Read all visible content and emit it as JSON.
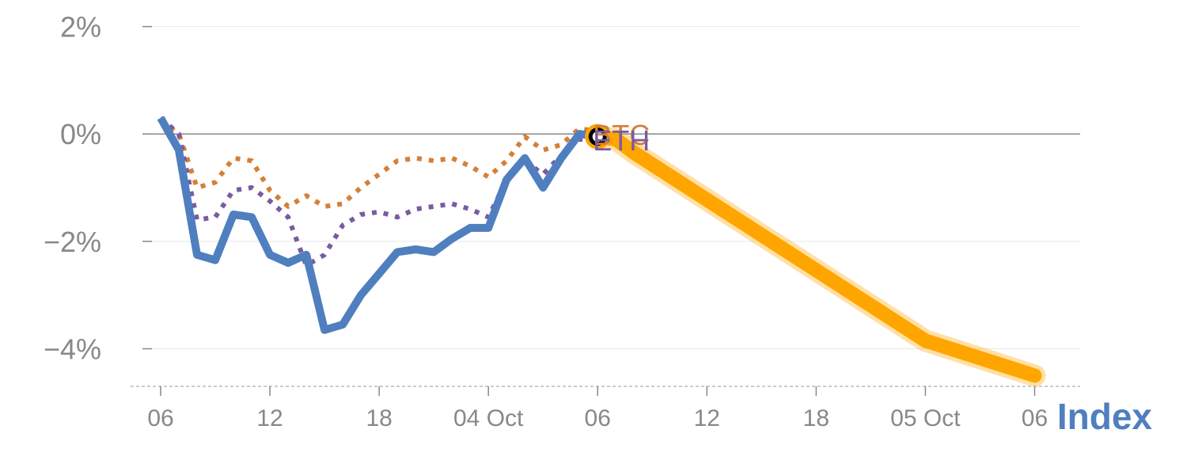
{
  "chart_data": {
    "type": "line",
    "y_ticks": [
      {
        "value": 2,
        "label": "2%"
      },
      {
        "value": 0,
        "label": "0%"
      },
      {
        "value": -2,
        "label": "−2%"
      },
      {
        "value": -4,
        "label": "−4%"
      }
    ],
    "ylim": [
      -4.7,
      2.2
    ],
    "x_ticks": [
      {
        "value": 0,
        "label": "06"
      },
      {
        "value": 6,
        "label": "12"
      },
      {
        "value": 12,
        "label": "18"
      },
      {
        "value": 18,
        "label": "04 Oct"
      },
      {
        "value": 24,
        "label": "06"
      },
      {
        "value": 30,
        "label": "12"
      },
      {
        "value": 36,
        "label": "18"
      },
      {
        "value": 42,
        "label": "05 Oct"
      },
      {
        "value": 48,
        "label": "06"
      }
    ],
    "xlim": [
      -1,
      50.5
    ],
    "grid": true,
    "series": [
      {
        "name": "BTC",
        "style": "dotted",
        "color": "#d4803a",
        "x": [
          0,
          1,
          2,
          3,
          4,
          5,
          6,
          7,
          8,
          9,
          10,
          11,
          12,
          13,
          14,
          15,
          16,
          17,
          18,
          19,
          20,
          21,
          22,
          23,
          24
        ],
        "values": [
          0.25,
          0.0,
          -1.0,
          -0.9,
          -0.45,
          -0.5,
          -1.05,
          -1.35,
          -1.15,
          -1.35,
          -1.3,
          -1.0,
          -0.75,
          -0.5,
          -0.45,
          -0.5,
          -0.45,
          -0.6,
          -0.8,
          -0.5,
          -0.05,
          -0.3,
          -0.2,
          0.1,
          0.05
        ]
      },
      {
        "name": "ETH",
        "style": "dotted",
        "color": "#7a5ba0",
        "x": [
          0,
          1,
          2,
          3,
          4,
          5,
          6,
          7,
          8,
          9,
          10,
          11,
          12,
          13,
          14,
          15,
          16,
          17,
          18,
          19,
          20,
          21,
          22,
          23,
          24
        ],
        "values": [
          0.3,
          0.0,
          -1.6,
          -1.55,
          -1.05,
          -1.0,
          -1.25,
          -1.55,
          -2.45,
          -2.25,
          -1.7,
          -1.5,
          -1.45,
          -1.55,
          -1.4,
          -1.35,
          -1.3,
          -1.4,
          -1.55,
          -0.85,
          -0.5,
          -0.75,
          -0.4,
          -0.1,
          -0.1
        ]
      },
      {
        "name": "",
        "style": "solid",
        "color": "#4f7fbf",
        "x": [
          0,
          1,
          2,
          3,
          4,
          5,
          6,
          7,
          8,
          9,
          10,
          11,
          12,
          13,
          14,
          15,
          16,
          17,
          18,
          19,
          20,
          21,
          22,
          23,
          24
        ],
        "values": [
          0.3,
          -0.3,
          -2.25,
          -2.35,
          -1.5,
          -1.55,
          -2.25,
          -2.4,
          -2.25,
          -3.65,
          -3.55,
          -3.0,
          -2.6,
          -2.2,
          -2.15,
          -2.2,
          -1.95,
          -1.75,
          -1.75,
          -0.85,
          -0.45,
          -1.0,
          -0.45,
          0.0,
          -0.05
        ]
      },
      {
        "name": "",
        "style": "highlight",
        "color": "#ffa500",
        "x": [
          24,
          25,
          26,
          42,
          48
        ],
        "values": [
          -0.05,
          -0.1,
          -0.35,
          -3.85,
          -4.5
        ]
      }
    ],
    "labels": [
      {
        "text": "BTC",
        "x": 24,
        "y": 0.0,
        "color": "#d4803a"
      },
      {
        "text": "ETH",
        "x": 24,
        "y": -0.1,
        "color": "#7a5ba0"
      }
    ],
    "legend": {
      "text": "Index",
      "color": "#4f7fbf",
      "placement": "bottom-right"
    },
    "marker": {
      "x": 24,
      "y": -0.05,
      "ring_color": "#ffa500"
    },
    "colors": {
      "axis_text": "#888888",
      "grid": "#e8e8e8",
      "zero_line": "#888888",
      "baseline": "#cccccc"
    }
  }
}
